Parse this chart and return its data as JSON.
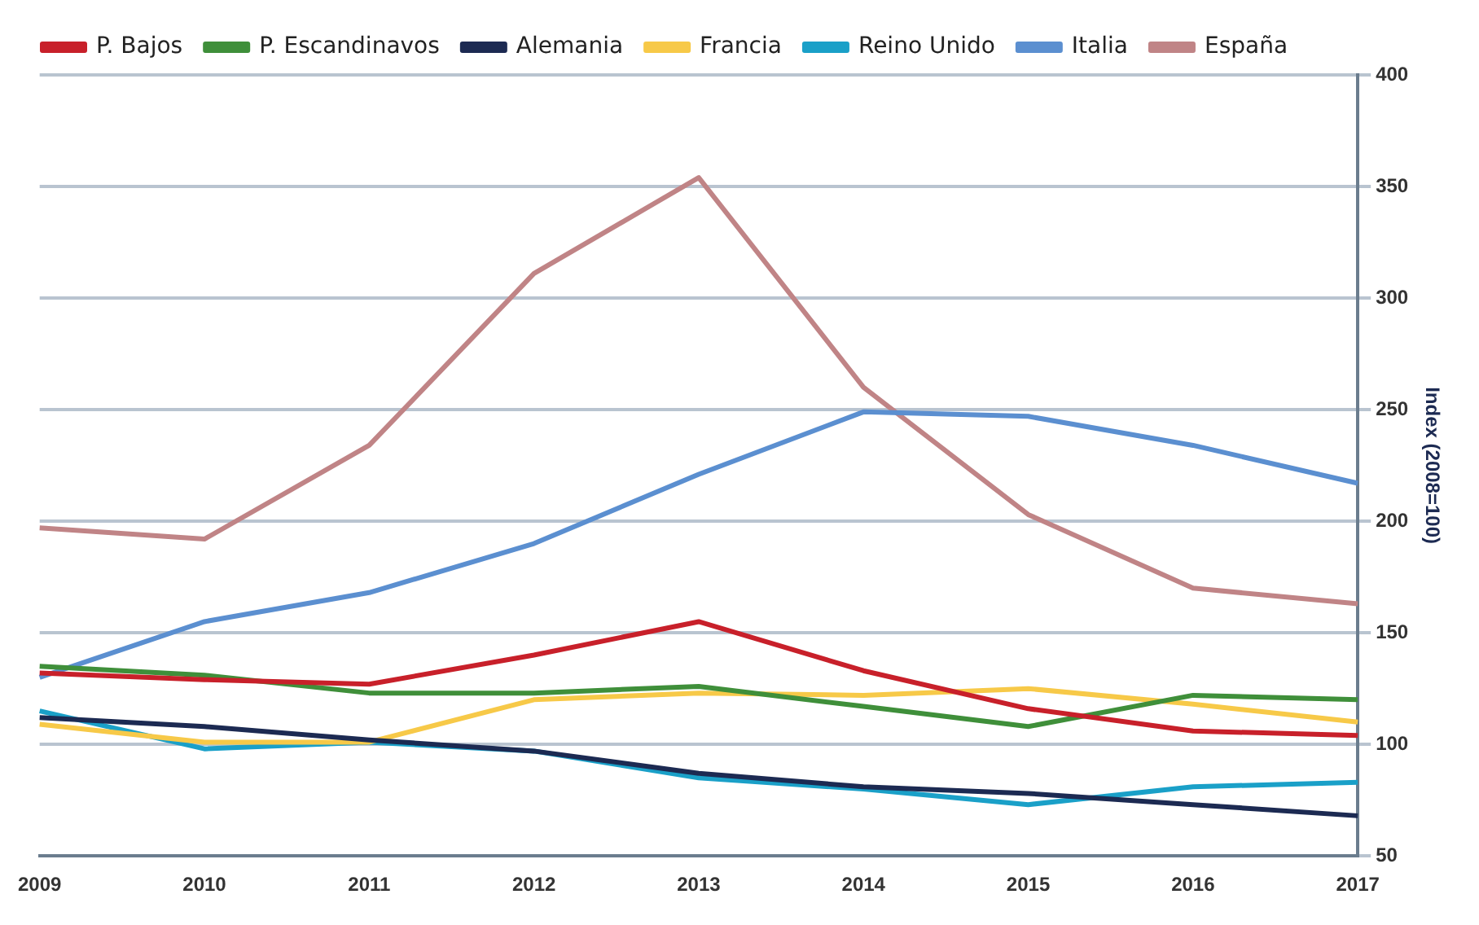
{
  "chart_data": {
    "type": "line",
    "ylabel": "Index (2008=100)",
    "categories": [
      "2009",
      "2010",
      "2011",
      "2012",
      "2013",
      "2014",
      "2015",
      "2016",
      "2017"
    ],
    "series": [
      {
        "name": "P. Bajos",
        "color": "#c8202a",
        "values": [
          132,
          129,
          127,
          140,
          155,
          133,
          116,
          106,
          104
        ]
      },
      {
        "name": "P. Escandinavos",
        "color": "#3f8f3a",
        "values": [
          135,
          131,
          123,
          123,
          126,
          117,
          108,
          122,
          120
        ]
      },
      {
        "name": "Alemania",
        "color": "#1c2a52",
        "values": [
          112,
          108,
          102,
          97,
          87,
          81,
          78,
          73,
          68
        ]
      },
      {
        "name": "Francia",
        "color": "#f7c948",
        "values": [
          109,
          101,
          101,
          120,
          123,
          122,
          125,
          118,
          110
        ]
      },
      {
        "name": "Reino Unido",
        "color": "#1aa0c8",
        "values": [
          115,
          98,
          101,
          97,
          85,
          80,
          73,
          81,
          83
        ]
      },
      {
        "name": "Italia",
        "color": "#5b8fd0",
        "values": [
          130,
          155,
          168,
          190,
          221,
          249,
          247,
          234,
          217
        ]
      },
      {
        "name": "España",
        "color": "#c08486",
        "values": [
          197,
          192,
          234,
          311,
          354,
          260,
          203,
          170,
          163
        ]
      }
    ],
    "ylim": [
      50,
      400
    ],
    "yticks": [
      50,
      100,
      150,
      200,
      250,
      300,
      350,
      400
    ],
    "grid": "y",
    "legend": "top left",
    "marker": "none",
    "line_style": "solid"
  }
}
